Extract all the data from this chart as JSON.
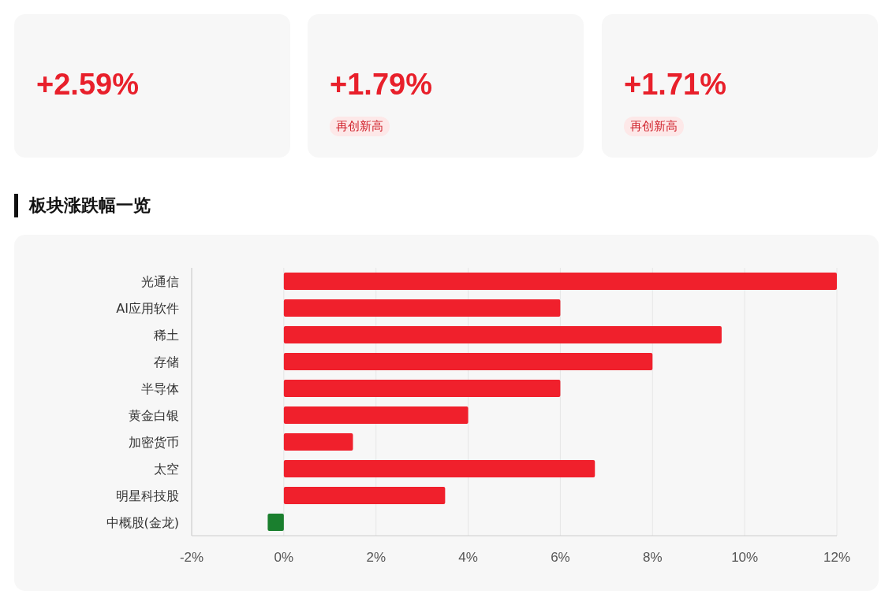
{
  "chart_data": [
    {
      "type": "other",
      "annotations": [
        "+2.59%"
      ]
    },
    {
      "type": "other",
      "annotations": [
        "+1.79%",
        "再创新高"
      ]
    },
    {
      "type": "other",
      "annotations": [
        "+1.71%",
        "再创新高"
      ]
    },
    {
      "type": "bar",
      "title": "板块涨跌幅一览",
      "orientation": "horizontal",
      "categories": [
        "光通信",
        "AI应用软件",
        "稀土",
        "存储",
        "半导体",
        "黄金白银",
        "加密货币",
        "太空",
        "明星科技股",
        "中概股(金龙)"
      ],
      "values": [
        12.0,
        6.0,
        9.5,
        8.0,
        6.0,
        4.0,
        1.5,
        6.75,
        3.5,
        -0.35
      ],
      "colors": [
        "#f0202c",
        "#f0202c",
        "#f0202c",
        "#f0202c",
        "#f0202c",
        "#f0202c",
        "#f0202c",
        "#f0202c",
        "#f0202c",
        "#1a7f2e"
      ],
      "xlim": [
        -2,
        12
      ],
      "xticks": [
        {
          "value": -2,
          "label": "-2%"
        },
        {
          "value": 0,
          "label": "0%"
        },
        {
          "value": 2,
          "label": "2%"
        },
        {
          "value": 4,
          "label": "4%"
        },
        {
          "value": 6,
          "label": "6%"
        },
        {
          "value": 8,
          "label": "8%"
        },
        {
          "value": 10,
          "label": "10%"
        },
        {
          "value": 12,
          "label": "12%"
        }
      ],
      "grid": "x"
    }
  ]
}
